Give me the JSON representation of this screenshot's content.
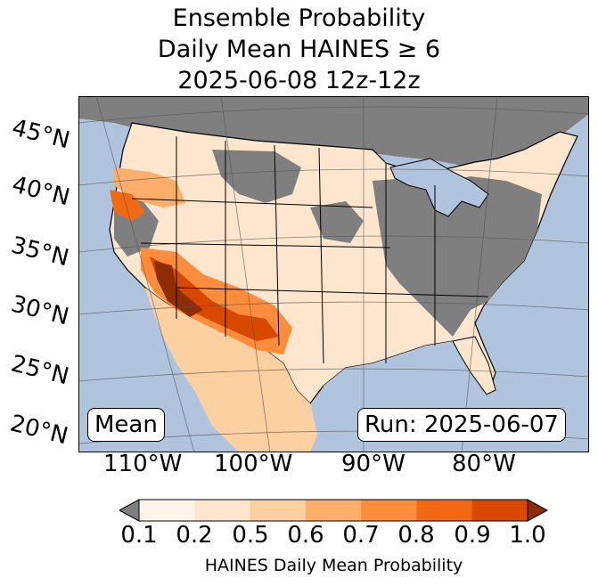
{
  "title": {
    "line1": "Ensemble Probability",
    "line2": "Daily Mean HAINES ≥ 6",
    "line3": "2025-06-08 12z-12z"
  },
  "map": {
    "region": "Contiguous United States",
    "lat_labels": [
      "45°N",
      "40°N",
      "35°N",
      "30°N",
      "25°N",
      "20°N"
    ],
    "lon_labels": [
      "110°W",
      "100°W",
      "90°W",
      "80°W"
    ],
    "stat_box": "Mean",
    "run_box": "Run: 2025-06-07",
    "ocean_color": "#b0c4de",
    "land_low_color": "#7f7f7f"
  },
  "colorbar": {
    "ticks": [
      "0.1",
      "0.2",
      "0.5",
      "0.6",
      "0.7",
      "0.8",
      "0.9",
      "1.0"
    ],
    "colors": [
      "#fff5eb",
      "#fee6ce",
      "#fdd0a2",
      "#fdae6b",
      "#fd8d3c",
      "#f16913",
      "#d94801",
      "#8c2d04"
    ],
    "under_color": "#7f7f7f",
    "label": "HAINES Daily Mean Probability"
  }
}
